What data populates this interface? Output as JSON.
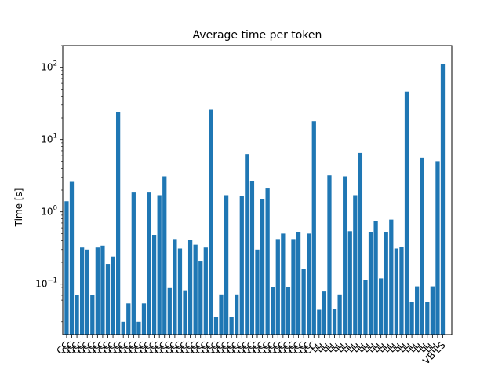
{
  "chart_data": {
    "type": "bar",
    "title": "Average time per token",
    "ylabel": "Time [s]",
    "xlabel": "",
    "y_scale": "log",
    "ylim": [
      0.02,
      200
    ],
    "y_ticks": [
      {
        "value": 0.1,
        "label": "10^-1"
      },
      {
        "value": 1,
        "label": "10^0"
      },
      {
        "value": 10,
        "label": "10^1"
      },
      {
        "value": 100,
        "label": "10^2"
      }
    ],
    "bar_color": "#1f77b4",
    "grid": false,
    "legend": "none",
    "values": [
      1.4,
      2.6,
      0.07,
      0.32,
      0.3,
      0.07,
      0.32,
      0.34,
      0.19,
      0.24,
      24,
      0.03,
      0.054,
      1.85,
      0.03,
      0.054,
      1.85,
      0.48,
      1.7,
      3.1,
      0.088,
      0.42,
      0.31,
      0.082,
      0.41,
      0.35,
      0.21,
      0.32,
      26,
      0.035,
      0.072,
      1.7,
      0.035,
      0.072,
      1.65,
      6.3,
      2.7,
      0.3,
      1.5,
      2.1,
      0.09,
      0.42,
      0.5,
      0.09,
      0.42,
      0.52,
      0.16,
      0.5,
      18,
      0.044,
      0.079,
      3.2,
      0.045,
      0.072,
      3.1,
      0.54,
      1.7,
      6.5,
      0.115,
      0.53,
      0.75,
      0.12,
      0.53,
      0.78,
      0.31,
      0.33,
      46,
      0.056,
      0.093,
      5.6,
      0.057,
      0.093,
      5.0,
      110
    ],
    "categories": [
      "CC",
      "CC",
      "CC",
      "CC",
      "CC",
      "CC",
      "CC",
      "CC",
      "CC",
      "CC",
      "CC",
      "CC",
      "CC",
      "CC",
      "CC",
      "CC",
      "CC",
      "CC",
      "CC",
      "CC",
      "CC",
      "CC",
      "CC",
      "CC",
      "CC",
      "CC",
      "CC",
      "CC",
      "CC",
      "CC",
      "CC",
      "CC",
      "CC",
      "CC",
      "CC",
      "CC",
      "CC",
      "CC",
      "CC",
      "CC",
      "CC",
      "CC",
      "CC",
      "CC",
      "CC",
      "CC",
      "CC",
      "CC",
      "CC",
      "LL",
      "LL",
      "LL",
      "LL",
      "LL",
      "LL",
      "LL",
      "LL",
      "LL",
      "LL",
      "LL",
      "LL",
      "LL",
      "LL",
      "LL",
      "LL",
      "LL",
      "LL",
      "LL",
      "LL",
      "LL",
      "LL",
      "LL",
      "LL",
      "VB LS"
    ]
  }
}
